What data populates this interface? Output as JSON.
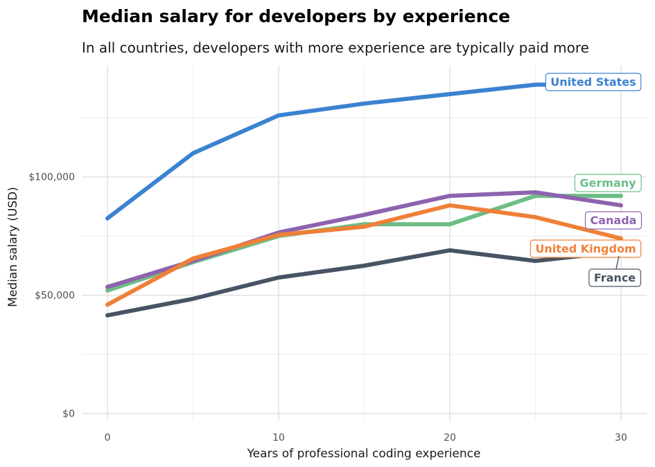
{
  "chart_data": {
    "type": "line",
    "title": "Median salary for developers by experience",
    "subtitle": "In all countries, developers with more experience are typically paid more",
    "xlabel": "Years of professional coding experience",
    "ylabel": "Median salary (USD)",
    "x": [
      0,
      5,
      10,
      15,
      20,
      25,
      30
    ],
    "xlim": [
      -1.5,
      31.5
    ],
    "ylim": [
      -3000,
      147000
    ],
    "xticks": [
      0,
      10,
      20,
      30
    ],
    "yticks": [
      0,
      50000,
      100000
    ],
    "ytick_labels": [
      "$0",
      "$50,000",
      "$100,000"
    ],
    "grid": true,
    "legend": "direct labels at line ends",
    "series": [
      {
        "name": "United States",
        "color": "#3b82d1",
        "values": [
          82500,
          110000,
          126000,
          131000,
          135000,
          139000,
          139000
        ]
      },
      {
        "name": "Germany",
        "color": "#6dbd86",
        "values": [
          52000,
          64000,
          75000,
          80000,
          80000,
          92000,
          92000
        ]
      },
      {
        "name": "Canada",
        "color": "#8e63ae",
        "values": [
          53500,
          64500,
          76500,
          84000,
          92000,
          93500,
          88000
        ]
      },
      {
        "name": "United Kingdom",
        "color": "#ef8038",
        "values": [
          46000,
          65500,
          75500,
          79000,
          88000,
          83000,
          74000
        ]
      },
      {
        "name": "France",
        "color": "#475464",
        "values": [
          41500,
          48500,
          57500,
          62500,
          69000,
          64500,
          68500
        ]
      }
    ]
  }
}
